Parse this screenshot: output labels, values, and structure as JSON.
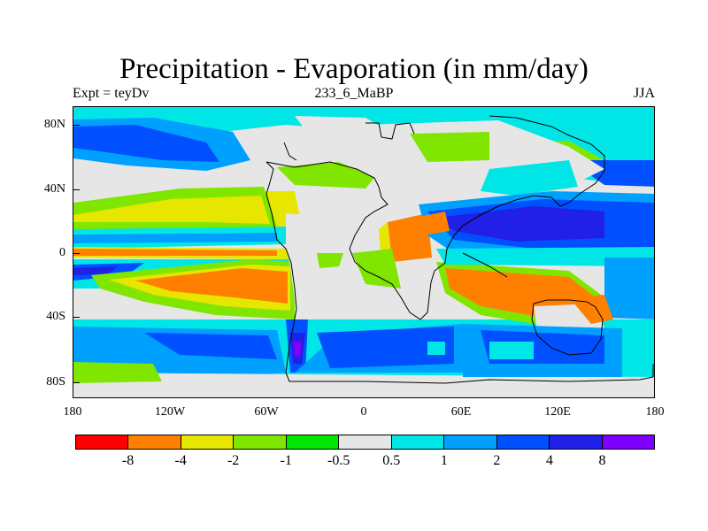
{
  "title": "Precipitation - Evaporation (in mm/day)",
  "left_string": "Expt = teyDv",
  "center_string": "233_6_MaBP",
  "right_string": "JJA",
  "y_labels": [
    "80N",
    "40N",
    "0",
    "40S",
    "80S"
  ],
  "x_labels": [
    "180",
    "120W",
    "60W",
    "0",
    "60E",
    "120E",
    "180"
  ],
  "colorbar": {
    "colors": [
      "#ff0000",
      "#ff8000",
      "#e6e600",
      "#80e600",
      "#00e600",
      "#e6e6e6",
      "#00e6e6",
      "#00a0ff",
      "#0050ff",
      "#2020e6",
      "#8000ff"
    ],
    "labels": [
      "-8",
      "-4",
      "-2",
      "-1",
      "-0.5",
      "0.5",
      "1",
      "2",
      "4",
      "8"
    ]
  },
  "palette": {
    "red": "#ff0000",
    "orange": "#ff8000",
    "yellow": "#e6e600",
    "lime": "#80e600",
    "green": "#00e600",
    "gray": "#e6e6e6",
    "cyan": "#00e6e6",
    "sky": "#00a0ff",
    "blue": "#0050ff",
    "navy": "#2020e6",
    "violet": "#8000ff"
  }
}
